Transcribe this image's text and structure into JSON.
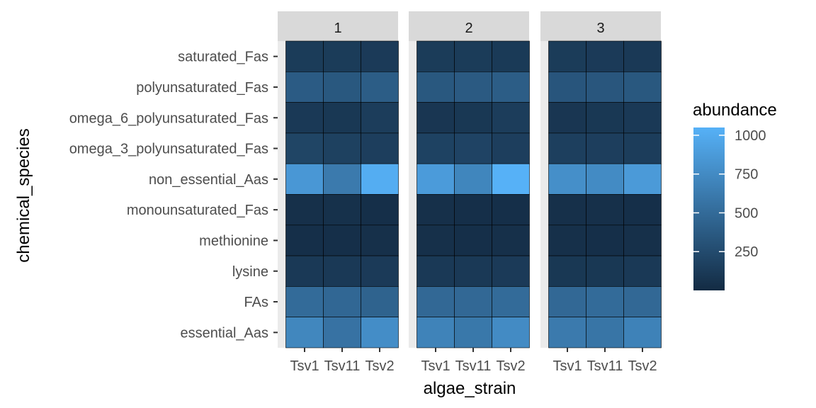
{
  "chart_data": {
    "type": "heatmap",
    "facet_labels": [
      "1",
      "2",
      "3"
    ],
    "x_categories": [
      "Tsv1",
      "Tsv11",
      "Tsv2"
    ],
    "x_tick_labels": [
      "Tsv1",
      "Tsv11",
      "Tsv2"
    ],
    "y_categories": [
      "saturated_Fas",
      "polyunsaturated_Fas",
      "omega_6_polyunsaturated_Fas",
      "omega_3_polyunsaturated_Fas",
      "non_essential_Aas",
      "monounsaturated_Fas",
      "methionine",
      "lysine",
      "FAs",
      "essential_Aas"
    ],
    "xlabel": "algae_strain",
    "ylabel": "chemical_species",
    "legend": {
      "title": "abundance",
      "position": "right",
      "ticks": [
        250,
        500,
        750,
        1000
      ],
      "tick_labels": [
        "250",
        "500",
        "750",
        "1000"
      ],
      "range": [
        0,
        1050
      ],
      "low_color": "#132B43",
      "high_color": "#56B1F7"
    },
    "values": [
      [
        [
          130,
          130,
          120
        ],
        [
          380,
          350,
          390
        ],
        [
          110,
          100,
          140
        ],
        [
          200,
          170,
          150
        ],
        [
          850,
          620,
          1020
        ],
        [
          40,
          45,
          35
        ],
        [
          35,
          35,
          40
        ],
        [
          110,
          110,
          120
        ],
        [
          500,
          470,
          440
        ],
        [
          720,
          560,
          770
        ]
      ],
      [
        [
          130,
          130,
          115
        ],
        [
          350,
          370,
          390
        ],
        [
          90,
          100,
          140
        ],
        [
          180,
          190,
          150
        ],
        [
          880,
          710,
          1050
        ],
        [
          40,
          35,
          35
        ],
        [
          40,
          35,
          40
        ],
        [
          110,
          110,
          120
        ],
        [
          480,
          480,
          500
        ],
        [
          690,
          600,
          750
        ]
      ],
      [
        [
          130,
          120,
          110
        ],
        [
          330,
          340,
          350
        ],
        [
          90,
          100,
          110
        ],
        [
          160,
          150,
          140
        ],
        [
          780,
          750,
          870
        ],
        [
          40,
          40,
          35
        ],
        [
          40,
          35,
          40
        ],
        [
          100,
          100,
          110
        ],
        [
          480,
          500,
          480
        ],
        [
          620,
          580,
          680
        ]
      ]
    ]
  }
}
